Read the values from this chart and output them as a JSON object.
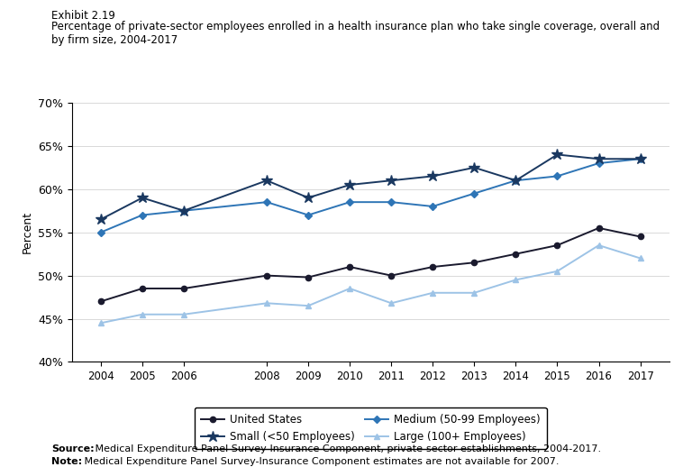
{
  "title_line1": "Exhibit 2.19",
  "title_line2": "Percentage of private-sector employees enrolled in a health insurance plan who take single coverage, overall and\nby firm size, 2004-2017",
  "ylabel": "Percent",
  "years": [
    2004,
    2005,
    2006,
    2008,
    2009,
    2010,
    2011,
    2012,
    2013,
    2014,
    2015,
    2016,
    2017
  ],
  "united_states": [
    47.0,
    48.5,
    48.5,
    50.0,
    49.8,
    51.0,
    50.0,
    51.0,
    51.5,
    52.5,
    53.5,
    55.5,
    54.5
  ],
  "small": [
    56.5,
    59.0,
    57.5,
    61.0,
    59.0,
    60.5,
    61.0,
    61.5,
    62.5,
    61.0,
    64.0,
    63.5,
    63.5
  ],
  "medium": [
    55.0,
    57.0,
    57.5,
    58.5,
    57.0,
    58.5,
    58.5,
    58.0,
    59.5,
    61.0,
    61.5,
    63.0,
    63.5
  ],
  "large": [
    44.5,
    45.5,
    45.5,
    46.8,
    46.5,
    48.5,
    46.8,
    48.0,
    48.0,
    49.5,
    50.5,
    53.5,
    52.0
  ],
  "color_us": "#1a1a2e",
  "color_small": "#1a3860",
  "color_medium": "#2e75b6",
  "color_large": "#9dc3e6",
  "ylim_min": 40,
  "ylim_max": 70,
  "yticks": [
    40,
    45,
    50,
    55,
    60,
    65,
    70
  ],
  "source_bold": "Source:",
  "source_rest": " Medical Expenditure Panel Survey-Insurance Component, private-sector establishments, 2004-2017.",
  "note_bold": "Note:",
  "note_rest": " Medical Expenditure Panel Survey-Insurance Component estimates are not available for 2007."
}
